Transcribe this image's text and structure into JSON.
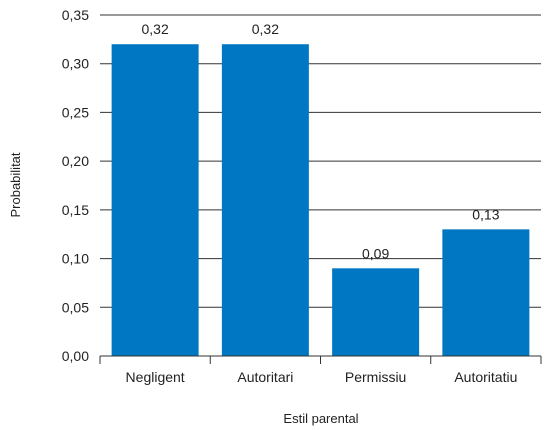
{
  "chart_data": {
    "type": "bar",
    "categories": [
      "Negligent",
      "Autoritari",
      "Permissiu",
      "Autoritatiu"
    ],
    "values": [
      0.32,
      0.32,
      0.09,
      0.13
    ],
    "data_labels": [
      "0,32",
      "0,32",
      "0,09",
      "0,13"
    ],
    "title": "",
    "xlabel": "Estil parental",
    "ylabel": "Probabilitat",
    "ylim": [
      0,
      0.35
    ],
    "y_ticks": [
      0,
      0.05,
      0.1,
      0.15,
      0.2,
      0.25,
      0.3,
      0.35
    ],
    "y_tick_labels": [
      "0,00",
      "0,05",
      "0,10",
      "0,15",
      "0,20",
      "0,25",
      "0,30",
      "0,35"
    ],
    "grid": "horizontal",
    "legend": "none",
    "colors": {
      "bar": "#0077c2",
      "grid": "#333333",
      "text": "#222222"
    }
  }
}
